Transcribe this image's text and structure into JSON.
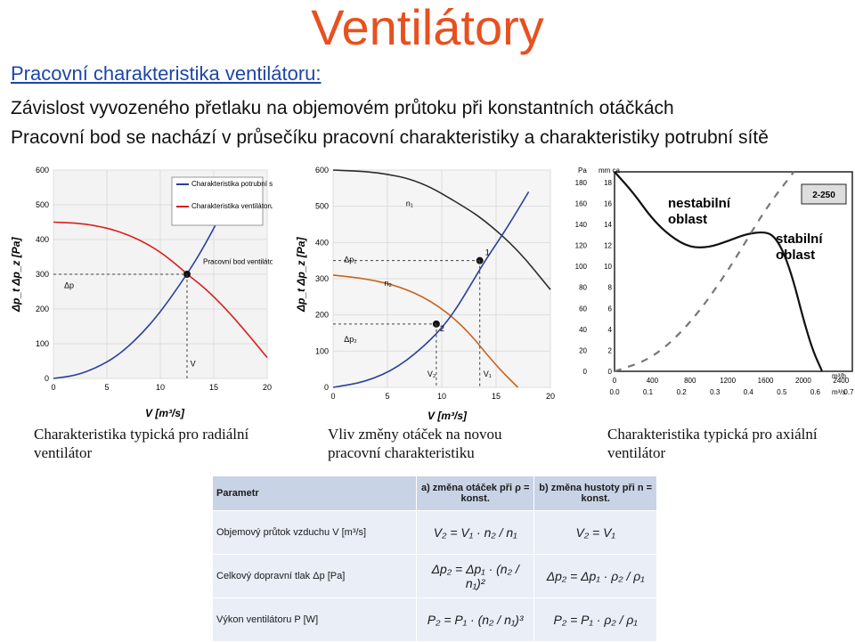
{
  "header": {
    "title": "Ventilátory",
    "subtitle": "Pracovní charakteristika ventilátoru:",
    "line1": "Závislost vyvozeného přetlaku na objemovém průtoku při konstantních otáčkách",
    "line2": "Pracovní bod se nachází v průsečíku pracovní charakteristiky a charakteristiky potrubní sítě"
  },
  "chart_data": [
    {
      "type": "line",
      "xlabel": "V [m³/s]",
      "ylabel": "Δp_t Δp_z [Pa]",
      "xticks": [
        "0",
        "5",
        "10",
        "15",
        "20"
      ],
      "yticks": [
        "0",
        "100",
        "200",
        "300",
        "400",
        "500",
        "600"
      ],
      "xlim": [
        0,
        20
      ],
      "ylim": [
        0,
        600
      ],
      "legend": [
        "Charakteristika potrubní sítě",
        "Charakteristika ventilátoru"
      ],
      "series": [
        {
          "name": "Charakteristika potrubní sítě",
          "color": "#2a3f9a",
          "x": [
            0,
            2,
            4,
            6,
            8,
            10,
            12.5,
            14,
            16,
            17.5
          ],
          "y": [
            0,
            8,
            30,
            65,
            120,
            190,
            300,
            375,
            490,
            580
          ]
        },
        {
          "name": "Charakteristika ventilátoru",
          "color": "#d8201c",
          "x": [
            0,
            2,
            4,
            6,
            8,
            10,
            12,
            12.5,
            14,
            16,
            18,
            20
          ],
          "y": [
            450,
            448,
            440,
            425,
            400,
            365,
            315,
            300,
            265,
            205,
            135,
            60
          ]
        }
      ],
      "annotations": [
        {
          "text": "Pracovní bod ventilátoru",
          "x": 12.5,
          "y": 300
        },
        {
          "text": "Δp",
          "x": 1,
          "y": 260
        },
        {
          "text": "V",
          "x": 12.5,
          "y": 40
        }
      ]
    },
    {
      "type": "line",
      "xlabel": "V [m³/s]",
      "ylabel": "Δp_t Δp_z [Pa]",
      "xticks": [
        "0",
        "5",
        "10",
        "15",
        "20"
      ],
      "yticks": [
        "0",
        "100",
        "200",
        "300",
        "400",
        "500",
        "600"
      ],
      "xlim": [
        0,
        20
      ],
      "ylim": [
        0,
        600
      ],
      "series": [
        {
          "name": "n₁",
          "color": "#2b2b2b",
          "x": [
            0,
            4,
            8,
            12,
            14,
            17,
            20
          ],
          "y": [
            600,
            595,
            570,
            500,
            460,
            380,
            270
          ]
        },
        {
          "name": "n₂",
          "color": "#c8641c",
          "x": [
            0,
            3,
            6,
            9,
            12,
            15,
            17
          ],
          "y": [
            310,
            300,
            280,
            240,
            170,
            60,
            0
          ]
        },
        {
          "name": "",
          "color": "#2a3f9a",
          "x": [
            0,
            3,
            6,
            9,
            11,
            13,
            14,
            16,
            18
          ],
          "y": [
            0,
            15,
            55,
            130,
            200,
            300,
            350,
            440,
            540
          ]
        }
      ],
      "annotations": [
        {
          "text": "n₁",
          "x": 6.7,
          "y": 500
        },
        {
          "text": "n₂",
          "x": 4.7,
          "y": 280
        },
        {
          "text": "Δp₁",
          "x": 1,
          "y": 360
        },
        {
          "text": "Δp₂",
          "x": 1,
          "y": 140
        },
        {
          "text": "1",
          "x": 13.5,
          "y": 350
        },
        {
          "text": "2",
          "x": 9.5,
          "y": 175
        },
        {
          "text": "V₂",
          "x": 9.5,
          "y": 30
        },
        {
          "text": "V₁",
          "x": 13.5,
          "y": 30
        }
      ]
    },
    {
      "type": "line",
      "xlabel": "m³/h",
      "xlabel2": "m³/s",
      "ylabel": "Pa",
      "ylabel2": "mm ca",
      "xticks": [
        "0",
        "400",
        "800",
        "1200",
        "1600",
        "2000",
        "2400"
      ],
      "xticks2": [
        "0.0",
        "0.1",
        "0.2",
        "0.3",
        "0.4",
        "0.5",
        "0.6",
        "0.7"
      ],
      "yticks_pa": [
        "0",
        "20",
        "40",
        "60",
        "80",
        "100",
        "120",
        "140",
        "160",
        "180"
      ],
      "yticks_mm": [
        "0",
        "2",
        "4",
        "6",
        "8",
        "10",
        "12",
        "14",
        "16",
        "18"
      ],
      "xlim": [
        0,
        2520
      ],
      "ylim": [
        0,
        190
      ],
      "model": "2-250",
      "series": [
        {
          "name": "2-250",
          "color": "#111111",
          "x": [
            0,
            200,
            400,
            600,
            800,
            1000,
            1200,
            1400,
            1600,
            1700,
            1800,
            1900,
            2000,
            2100,
            2200
          ],
          "y": [
            190,
            170,
            145,
            128,
            118,
            118,
            124,
            131,
            133,
            128,
            112,
            85,
            50,
            20,
            0
          ]
        },
        {
          "name": "",
          "color": "#777777",
          "x": [
            0,
            400,
            800,
            1200,
            1600,
            1900
          ],
          "y": [
            0,
            12,
            45,
            95,
            155,
            190
          ]
        }
      ],
      "annotations": [
        {
          "text": "nestabilní oblast"
        },
        {
          "text": "stabilní oblast"
        }
      ]
    }
  ],
  "captions": {
    "c1": "Charakteristika typická pro radiální ventilátor",
    "c2": "Vliv změny otáček na novou pracovní charakteristiku",
    "c3": "Charakteristika typická pro axiální ventilátor"
  },
  "table": {
    "headers": [
      "Parametr",
      "a) změna otáček při ρ = konst.",
      "b) změna hustoty při n = konst."
    ],
    "rows": [
      {
        "param": "Objemový průtok vzduchu V [m³/s]",
        "a": "V₂ = V₁ · n₂ / n₁",
        "b": "V₂ = V₁"
      },
      {
        "param": "Celkový dopravní tlak Δp [Pa]",
        "a": "Δp₂ = Δp₁ · (n₂ / n₁)²",
        "b": "Δp₂ = Δp₁ · ρ₂ / ρ₁"
      },
      {
        "param": "Výkon ventilátoru P [W]",
        "a": "P₂ = P₁ · (n₂ / n₁)³",
        "b": "P₂ = P₁ · ρ₂ / ρ₁"
      }
    ]
  }
}
